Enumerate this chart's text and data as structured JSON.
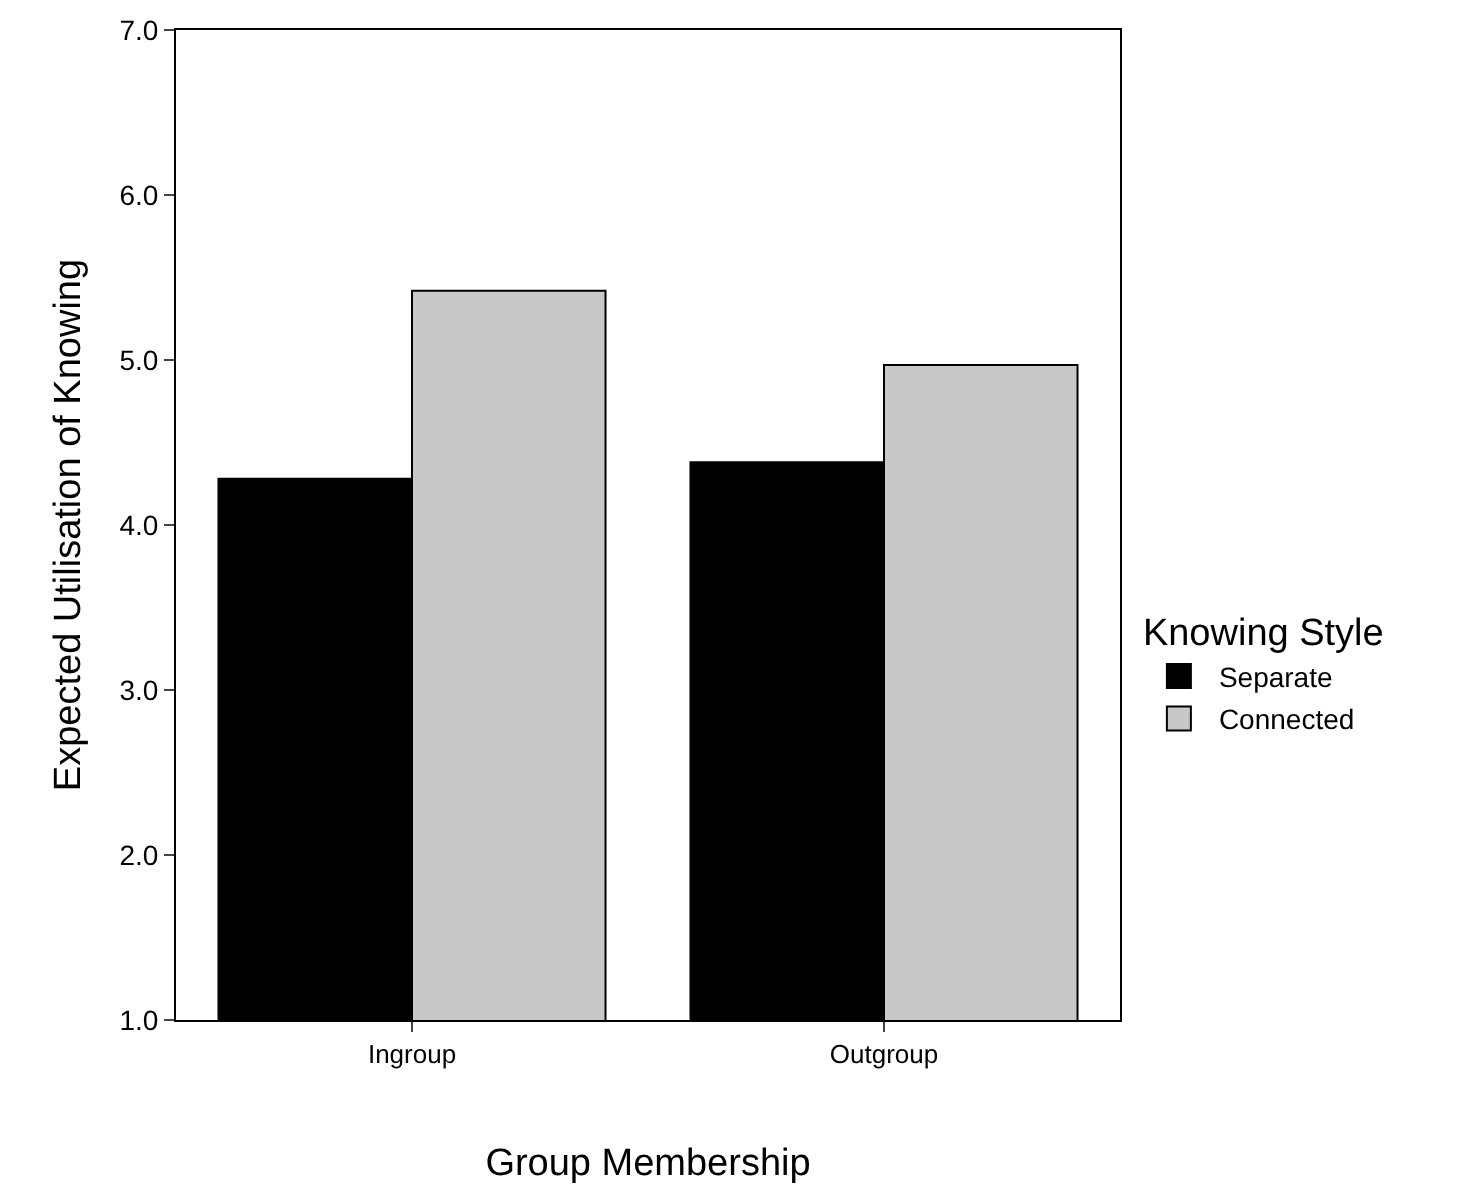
{
  "chart_data": {
    "type": "bar",
    "xlabel": "Group Membership",
    "ylabel": "Expected Utilisation of Knowing",
    "legend_title": "Knowing Style",
    "categories": [
      "Ingroup",
      "Outgroup"
    ],
    "series": [
      {
        "name": "Separate",
        "color": "#000000",
        "values": [
          4.28,
          4.38
        ]
      },
      {
        "name": "Connected",
        "color": "#c8c8c8",
        "values": [
          5.42,
          4.97
        ]
      }
    ],
    "ylim": [
      1,
      7
    ],
    "yticks": [
      {
        "value": 1,
        "label": "1.0"
      },
      {
        "value": 2,
        "label": "2.0"
      },
      {
        "value": 3,
        "label": "3.0"
      },
      {
        "value": 4,
        "label": "4.0"
      },
      {
        "value": 5,
        "label": "5.0"
      },
      {
        "value": 6,
        "label": "6.0"
      },
      {
        "value": 7,
        "label": "7.0"
      }
    ],
    "grid": false,
    "legend": "right"
  }
}
